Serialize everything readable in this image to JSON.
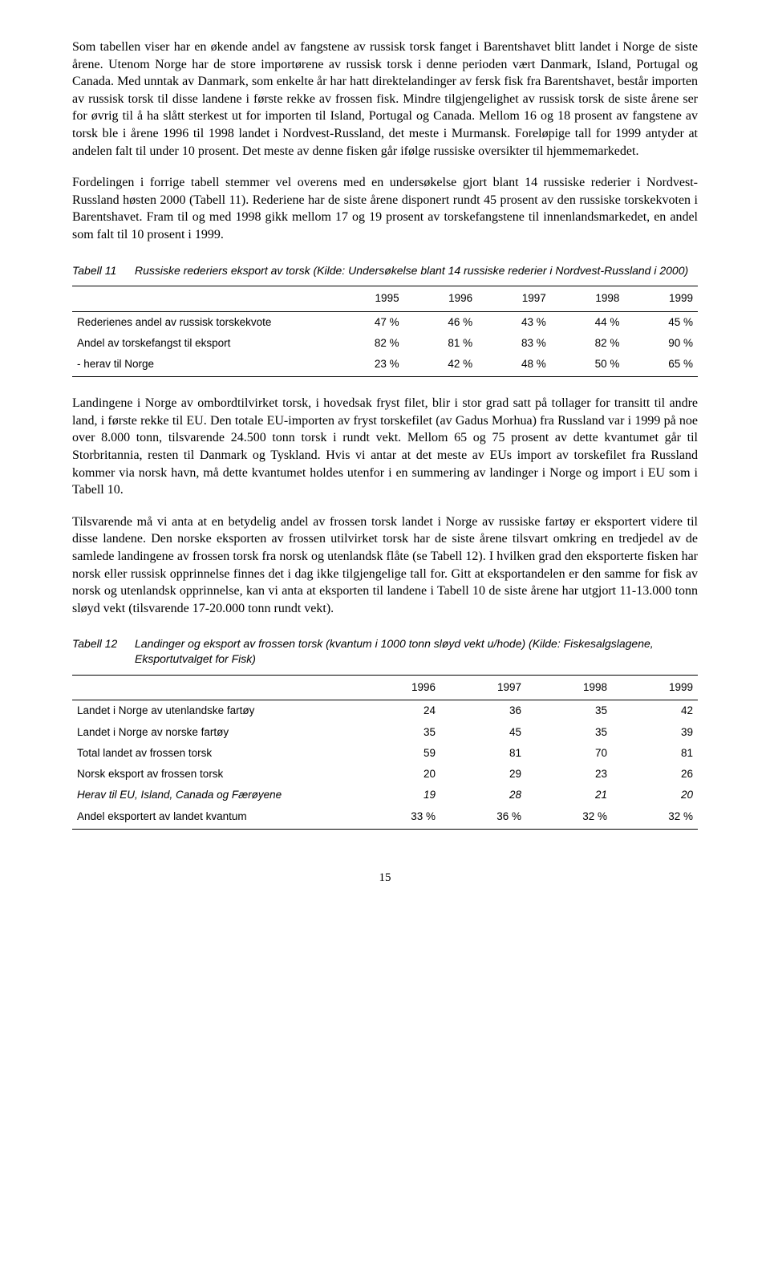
{
  "paragraphs": {
    "p1": "Som tabellen viser har en økende andel av fangstene av russisk torsk fanget i Barentshavet blitt landet i Norge de siste årene. Utenom Norge har de store importørene av russisk torsk i denne perioden vært Danmark, Island, Portugal og Canada. Med unntak av Danmark, som enkelte år har hatt direktelandinger av fersk fisk fra Barentshavet, består importen av russisk torsk til disse landene i første rekke av frossen fisk. Mindre tilgjengelighet av russisk torsk de siste årene ser for øvrig til å ha slått sterkest ut for importen til Island, Portugal og Canada. Mellom 16 og 18 prosent av fangstene av torsk ble i årene 1996 til 1998 landet i Nordvest-Russland, det meste i Murmansk. Foreløpige tall for 1999 antyder at andelen falt til under 10 prosent. Det meste av denne fisken går ifølge russiske oversikter til hjemmemarkedet.",
    "p2": "Fordelingen i forrige tabell stemmer vel overens med en undersøkelse gjort blant 14 russiske rederier i Nordvest-Russland høsten 2000 (Tabell 11). Rederiene har de siste årene disponert rundt 45 prosent av den russiske torskekvoten i Barentshavet. Fram til og med 1998 gikk mellom 17 og 19 prosent av torskefangstene til innenlandsmarkedet, en andel som falt til 10 prosent i 1999.",
    "p3": "Landingene i Norge av ombordtilvirket torsk, i hovedsak fryst filet, blir i stor grad satt på tollager for transitt til andre land, i første rekke til EU. Den totale EU-importen av fryst torskefilet (av Gadus Morhua) fra Russland var i 1999 på noe over 8.000 tonn, tilsvarende 24.500 tonn torsk i rundt vekt. Mellom 65 og 75 prosent av dette kvantumet går til Storbritannia, resten til Danmark og Tyskland. Hvis vi antar at det meste av EUs import av torskefilet fra Russland kommer via norsk havn, må dette kvantumet holdes utenfor i en summering av landinger i Norge og import i EU som i Tabell 10.",
    "p4": "Tilsvarende må vi anta at en betydelig andel av frossen torsk landet i Norge av russiske fartøy er eksportert videre til disse landene. Den norske eksporten av frossen utilvirket torsk har de siste årene tilsvart omkring en tredjedel av de samlede landingene av frossen torsk fra norsk og utenlandsk flåte (se Tabell 12). I hvilken grad den eksporterte fisken har norsk eller russisk opprinnelse finnes det i dag ikke tilgjengelige tall for. Gitt at eksportandelen er den samme for fisk av norsk og utenlandsk opprinnelse, kan vi anta at eksporten til landene i Tabell 10 de siste årene har utgjort 11-13.000 tonn sløyd vekt (tilsvarende 17-20.000 tonn rundt vekt)."
  },
  "table11": {
    "label": "Tabell 11",
    "caption": "Russiske rederiers eksport av torsk (Kilde: Undersøkelse blant 14 russiske rederier i Nordvest-Russland i 2000)",
    "columns": [
      "",
      "1995",
      "1996",
      "1997",
      "1998",
      "1999"
    ],
    "rows": [
      [
        "Rederienes andel av russisk torskekvote",
        "47 %",
        "46 %",
        "43 %",
        "44 %",
        "45 %"
      ],
      [
        "Andel av torskefangst til eksport",
        "82 %",
        "81 %",
        "83 %",
        "82 %",
        "90 %"
      ],
      [
        "- herav til Norge",
        "23 %",
        "42 %",
        "48 %",
        "50 %",
        "65 %"
      ]
    ]
  },
  "table12": {
    "label": "Tabell 12",
    "caption": "Landinger og eksport av frossen torsk (kvantum i 1000 tonn sløyd vekt u/hode) (Kilde: Fiskesalgslagene, Eksportutvalget for Fisk)",
    "columns": [
      "",
      "1996",
      "1997",
      "1998",
      "1999"
    ],
    "rows": [
      {
        "cells": [
          "Landet i Norge av utenlandske fartøy",
          "24",
          "36",
          "35",
          "42"
        ],
        "italic": false
      },
      {
        "cells": [
          "Landet i Norge av norske fartøy",
          "35",
          "45",
          "35",
          "39"
        ],
        "italic": false
      },
      {
        "cells": [
          "Total landet av frossen torsk",
          "59",
          "81",
          "70",
          "81"
        ],
        "italic": false
      },
      {
        "cells": [
          "Norsk eksport av frossen torsk",
          "20",
          "29",
          "23",
          "26"
        ],
        "italic": false
      },
      {
        "cells": [
          "Herav til EU, Island, Canada og Færøyene",
          "19",
          "28",
          "21",
          "20"
        ],
        "italic": true
      },
      {
        "cells": [
          "Andel eksportert av landet kvantum",
          "33 %",
          "36 %",
          "32 %",
          "32 %"
        ],
        "italic": false
      }
    ]
  },
  "pageNumber": "15"
}
